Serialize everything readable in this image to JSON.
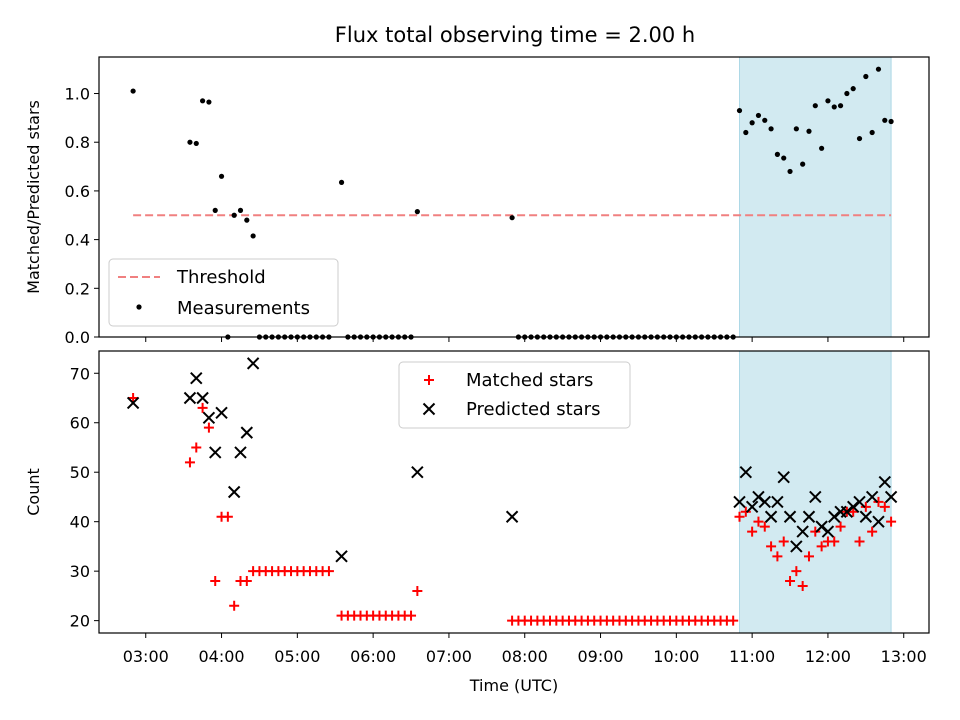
{
  "title": "Flux total observing time = 2.00 h",
  "colors": {
    "threshold": "#f08080",
    "measurements": "#000000",
    "matched": "#ff0000",
    "predicted": "#000000",
    "highlight": "#add8e6"
  },
  "chart_data": [
    {
      "type": "scatter",
      "ylabel": "Matched/Predicted stars",
      "ylim": [
        0,
        1.15
      ],
      "xlim": [
        "02:23",
        "13:20"
      ],
      "yticks": [
        "0.0",
        "0.2",
        "0.4",
        "0.6",
        "0.8",
        "1.0"
      ],
      "highlight_span": [
        "10:50",
        "12:50"
      ],
      "legend": {
        "position": "lower-left",
        "entries": [
          "Threshold",
          "Measurements"
        ]
      },
      "threshold": {
        "name": "Threshold",
        "value": 0.5,
        "x_range": [
          "02:50",
          "12:50"
        ],
        "style": "dashed"
      },
      "series": [
        {
          "name": "Measurements",
          "points": [
            [
              "02:50",
              1.01
            ],
            [
              "03:35",
              0.8
            ],
            [
              "03:40",
              0.795
            ],
            [
              "03:45",
              0.97
            ],
            [
              "03:50",
              0.965
            ],
            [
              "03:55",
              0.52
            ],
            [
              "04:00",
              0.66
            ],
            [
              "04:05",
              0.0
            ],
            [
              "04:10",
              0.5
            ],
            [
              "04:15",
              0.52
            ],
            [
              "04:20",
              0.48
            ],
            [
              "04:25",
              0.415
            ],
            [
              "04:30",
              0.0
            ],
            [
              "04:35",
              0.0
            ],
            [
              "04:40",
              0.0
            ],
            [
              "04:45",
              0.0
            ],
            [
              "04:50",
              0.0
            ],
            [
              "04:55",
              0.0
            ],
            [
              "05:00",
              0.0
            ],
            [
              "05:05",
              0.0
            ],
            [
              "05:10",
              0.0
            ],
            [
              "05:15",
              0.0
            ],
            [
              "05:20",
              0.0
            ],
            [
              "05:25",
              0.0
            ],
            [
              "05:35",
              0.635
            ],
            [
              "05:40",
              0.0
            ],
            [
              "05:45",
              0.0
            ],
            [
              "05:50",
              0.0
            ],
            [
              "05:55",
              0.0
            ],
            [
              "06:00",
              0.0
            ],
            [
              "06:05",
              0.0
            ],
            [
              "06:10",
              0.0
            ],
            [
              "06:15",
              0.0
            ],
            [
              "06:20",
              0.0
            ],
            [
              "06:25",
              0.0
            ],
            [
              "06:30",
              0.0
            ],
            [
              "06:35",
              0.515
            ],
            [
              "07:50",
              0.49
            ],
            [
              "07:55",
              0.0
            ],
            [
              "08:00",
              0.0
            ],
            [
              "08:05",
              0.0
            ],
            [
              "08:10",
              0.0
            ],
            [
              "08:15",
              0.0
            ],
            [
              "08:20",
              0.0
            ],
            [
              "08:25",
              0.0
            ],
            [
              "08:30",
              0.0
            ],
            [
              "08:35",
              0.0
            ],
            [
              "08:40",
              0.0
            ],
            [
              "08:45",
              0.0
            ],
            [
              "08:50",
              0.0
            ],
            [
              "08:55",
              0.0
            ],
            [
              "09:00",
              0.0
            ],
            [
              "09:05",
              0.0
            ],
            [
              "09:10",
              0.0
            ],
            [
              "09:15",
              0.0
            ],
            [
              "09:20",
              0.0
            ],
            [
              "09:25",
              0.0
            ],
            [
              "09:30",
              0.0
            ],
            [
              "09:35",
              0.0
            ],
            [
              "09:40",
              0.0
            ],
            [
              "09:45",
              0.0
            ],
            [
              "09:50",
              0.0
            ],
            [
              "09:55",
              0.0
            ],
            [
              "10:00",
              0.0
            ],
            [
              "10:05",
              0.0
            ],
            [
              "10:10",
              0.0
            ],
            [
              "10:15",
              0.0
            ],
            [
              "10:20",
              0.0
            ],
            [
              "10:25",
              0.0
            ],
            [
              "10:30",
              0.0
            ],
            [
              "10:35",
              0.0
            ],
            [
              "10:40",
              0.0
            ],
            [
              "10:45",
              0.0
            ],
            [
              "10:50",
              0.93
            ],
            [
              "10:55",
              0.84
            ],
            [
              "11:00",
              0.88
            ],
            [
              "11:05",
              0.91
            ],
            [
              "11:10",
              0.89
            ],
            [
              "11:15",
              0.855
            ],
            [
              "11:20",
              0.75
            ],
            [
              "11:25",
              0.735
            ],
            [
              "11:30",
              0.68
            ],
            [
              "11:35",
              0.855
            ],
            [
              "11:40",
              0.71
            ],
            [
              "11:45",
              0.845
            ],
            [
              "11:50",
              0.95
            ],
            [
              "11:55",
              0.775
            ],
            [
              "12:00",
              0.97
            ],
            [
              "12:05",
              0.945
            ],
            [
              "12:10",
              0.95
            ],
            [
              "12:15",
              1.0
            ],
            [
              "12:20",
              1.02
            ],
            [
              "12:25",
              0.815
            ],
            [
              "12:30",
              1.07
            ],
            [
              "12:35",
              0.84
            ],
            [
              "12:40",
              1.1
            ],
            [
              "12:45",
              0.89
            ],
            [
              "12:50",
              0.885
            ]
          ]
        }
      ]
    },
    {
      "type": "scatter",
      "ylabel": "Count",
      "xlabel": "Time (UTC)",
      "ylim": [
        17.5,
        74.5
      ],
      "xlim": [
        "02:23",
        "13:20"
      ],
      "yticks": [
        "20",
        "30",
        "40",
        "50",
        "60",
        "70"
      ],
      "xticks": [
        "03:00",
        "04:00",
        "05:00",
        "06:00",
        "07:00",
        "08:00",
        "09:00",
        "10:00",
        "11:00",
        "12:00",
        "13:00"
      ],
      "highlight_span": [
        "10:50",
        "12:50"
      ],
      "legend": {
        "position": "upper-center",
        "entries": [
          "Matched stars",
          "Predicted stars"
        ]
      },
      "series": [
        {
          "name": "Matched stars",
          "marker": "plus",
          "points": [
            [
              "02:50",
              65
            ],
            [
              "03:35",
              52
            ],
            [
              "03:40",
              55
            ],
            [
              "03:45",
              63
            ],
            [
              "03:50",
              59
            ],
            [
              "03:55",
              28
            ],
            [
              "04:00",
              41
            ],
            [
              "04:05",
              41
            ],
            [
              "04:10",
              23
            ],
            [
              "04:15",
              28
            ],
            [
              "04:20",
              28
            ],
            [
              "04:25",
              30
            ],
            [
              "04:30",
              30
            ],
            [
              "04:35",
              30
            ],
            [
              "04:40",
              30
            ],
            [
              "04:45",
              30
            ],
            [
              "04:50",
              30
            ],
            [
              "04:55",
              30
            ],
            [
              "05:00",
              30
            ],
            [
              "05:05",
              30
            ],
            [
              "05:10",
              30
            ],
            [
              "05:15",
              30
            ],
            [
              "05:20",
              30
            ],
            [
              "05:25",
              30
            ],
            [
              "05:35",
              21
            ],
            [
              "05:40",
              21
            ],
            [
              "05:45",
              21
            ],
            [
              "05:50",
              21
            ],
            [
              "05:55",
              21
            ],
            [
              "06:00",
              21
            ],
            [
              "06:05",
              21
            ],
            [
              "06:10",
              21
            ],
            [
              "06:15",
              21
            ],
            [
              "06:20",
              21
            ],
            [
              "06:25",
              21
            ],
            [
              "06:30",
              21
            ],
            [
              "06:35",
              26
            ],
            [
              "07:50",
              20
            ],
            [
              "07:55",
              20
            ],
            [
              "08:00",
              20
            ],
            [
              "08:05",
              20
            ],
            [
              "08:10",
              20
            ],
            [
              "08:15",
              20
            ],
            [
              "08:20",
              20
            ],
            [
              "08:25",
              20
            ],
            [
              "08:30",
              20
            ],
            [
              "08:35",
              20
            ],
            [
              "08:40",
              20
            ],
            [
              "08:45",
              20
            ],
            [
              "08:50",
              20
            ],
            [
              "08:55",
              20
            ],
            [
              "09:00",
              20
            ],
            [
              "09:05",
              20
            ],
            [
              "09:10",
              20
            ],
            [
              "09:15",
              20
            ],
            [
              "09:20",
              20
            ],
            [
              "09:25",
              20
            ],
            [
              "09:30",
              20
            ],
            [
              "09:35",
              20
            ],
            [
              "09:40",
              20
            ],
            [
              "09:45",
              20
            ],
            [
              "09:50",
              20
            ],
            [
              "09:55",
              20
            ],
            [
              "10:00",
              20
            ],
            [
              "10:05",
              20
            ],
            [
              "10:10",
              20
            ],
            [
              "10:15",
              20
            ],
            [
              "10:20",
              20
            ],
            [
              "10:25",
              20
            ],
            [
              "10:30",
              20
            ],
            [
              "10:35",
              20
            ],
            [
              "10:40",
              20
            ],
            [
              "10:45",
              20
            ],
            [
              "10:50",
              41
            ],
            [
              "10:55",
              42
            ],
            [
              "11:00",
              38
            ],
            [
              "11:05",
              40
            ],
            [
              "11:10",
              39
            ],
            [
              "11:15",
              35
            ],
            [
              "11:20",
              33
            ],
            [
              "11:25",
              36
            ],
            [
              "11:30",
              28
            ],
            [
              "11:35",
              30
            ],
            [
              "11:40",
              27
            ],
            [
              "11:45",
              33
            ],
            [
              "11:50",
              38
            ],
            [
              "11:55",
              35
            ],
            [
              "12:00",
              36
            ],
            [
              "12:05",
              36
            ],
            [
              "12:10",
              39
            ],
            [
              "12:15",
              42
            ],
            [
              "12:20",
              42
            ],
            [
              "12:25",
              36
            ],
            [
              "12:30",
              43
            ],
            [
              "12:35",
              38
            ],
            [
              "12:40",
              44
            ],
            [
              "12:45",
              43
            ],
            [
              "12:50",
              40
            ]
          ]
        },
        {
          "name": "Predicted stars",
          "marker": "x",
          "points": [
            [
              "02:50",
              64
            ],
            [
              "03:35",
              65
            ],
            [
              "03:40",
              69
            ],
            [
              "03:45",
              65
            ],
            [
              "03:50",
              61
            ],
            [
              "03:55",
              54
            ],
            [
              "04:00",
              62
            ],
            [
              "04:10",
              46
            ],
            [
              "04:15",
              54
            ],
            [
              "04:20",
              58
            ],
            [
              "04:25",
              72
            ],
            [
              "05:35",
              33
            ],
            [
              "06:35",
              50
            ],
            [
              "07:50",
              41
            ],
            [
              "10:50",
              44
            ],
            [
              "10:55",
              50
            ],
            [
              "11:00",
              43
            ],
            [
              "11:05",
              45
            ],
            [
              "11:10",
              44
            ],
            [
              "11:15",
              41
            ],
            [
              "11:20",
              44
            ],
            [
              "11:25",
              49
            ],
            [
              "11:30",
              41
            ],
            [
              "11:35",
              35
            ],
            [
              "11:40",
              38
            ],
            [
              "11:45",
              41
            ],
            [
              "11:50",
              45
            ],
            [
              "11:55",
              39
            ],
            [
              "12:00",
              38
            ],
            [
              "12:05",
              41
            ],
            [
              "12:10",
              42
            ],
            [
              "12:15",
              42
            ],
            [
              "12:20",
              43
            ],
            [
              "12:25",
              44
            ],
            [
              "12:30",
              41
            ],
            [
              "12:35",
              45
            ],
            [
              "12:40",
              40
            ],
            [
              "12:45",
              48
            ],
            [
              "12:50",
              45
            ]
          ]
        }
      ]
    }
  ]
}
